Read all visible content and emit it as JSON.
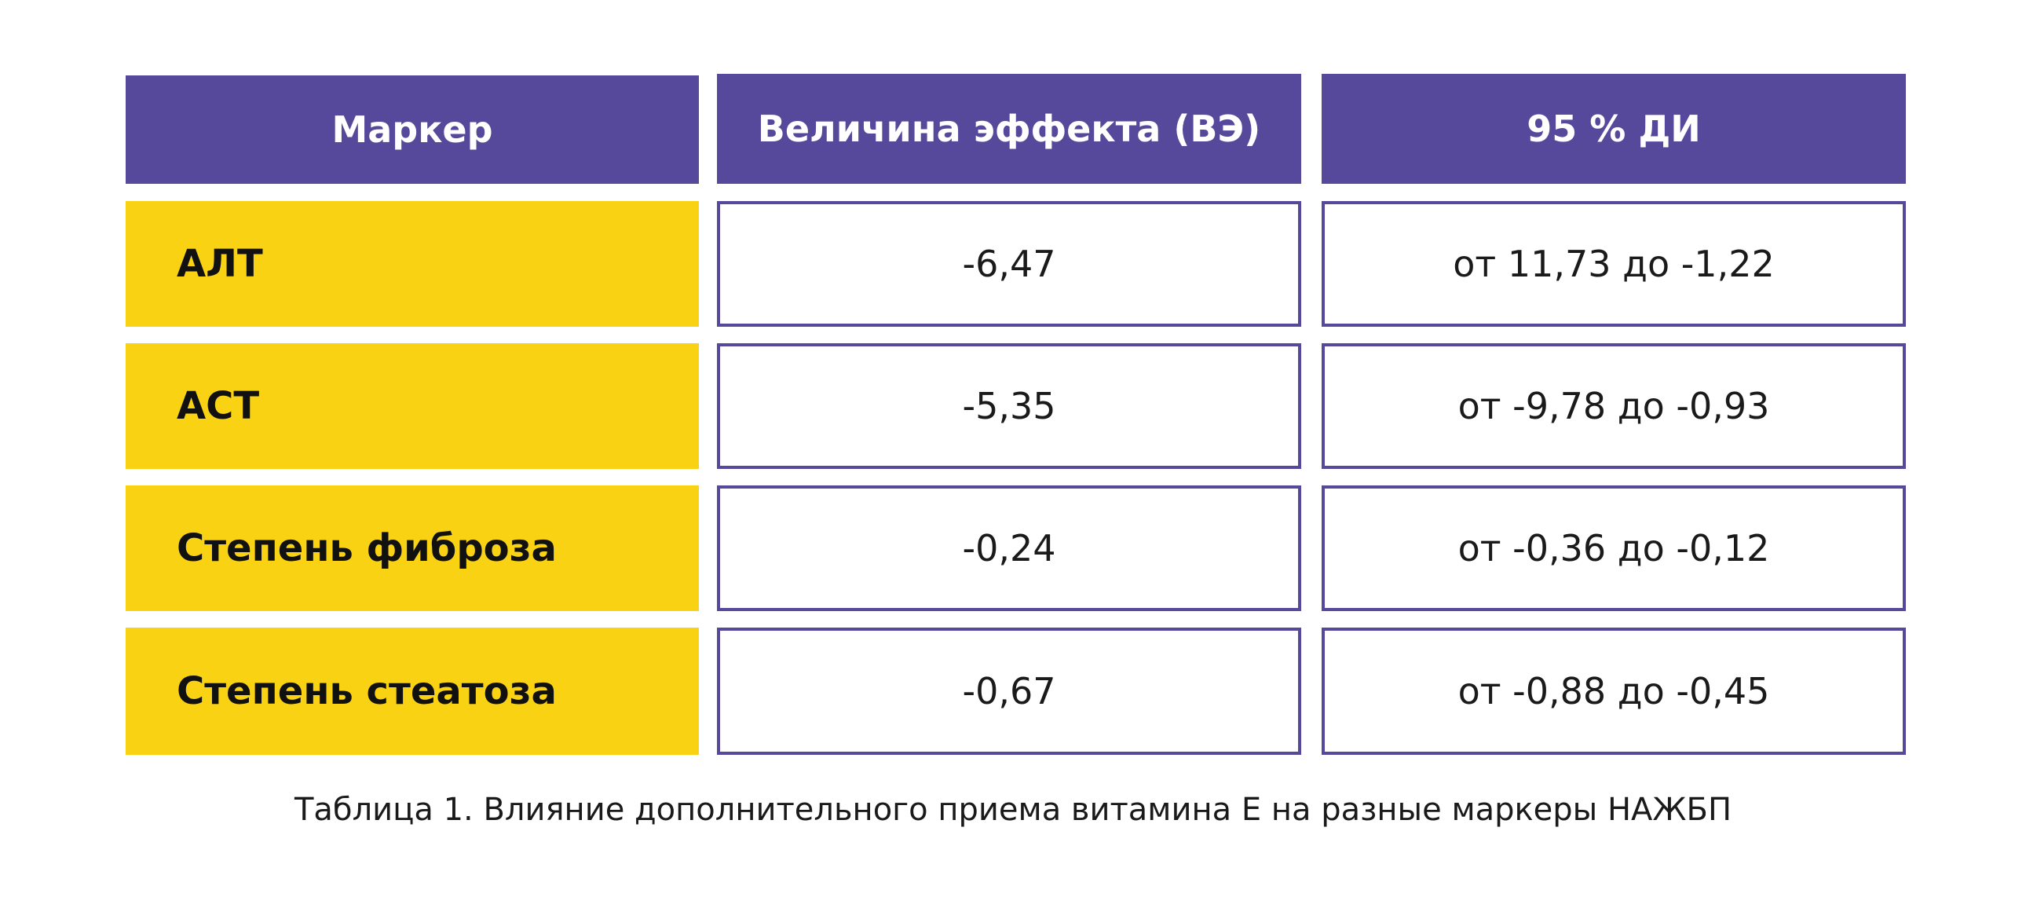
{
  "table": {
    "headers": [
      "Маркер",
      "Величина эффекта (ВЭ)",
      "95 % ДИ"
    ],
    "rows": [
      {
        "marker": "АЛТ",
        "effect": "-6,47",
        "ci": "от 11,73 до -1,22"
      },
      {
        "marker": "АСТ",
        "effect": "-5,35",
        "ci": "от -9,78 до -0,93"
      },
      {
        "marker": "Степень фиброза",
        "effect": "-0,24",
        "ci": "от -0,36 до -0,12"
      },
      {
        "marker": "Степень стеатоза",
        "effect": "-0,67",
        "ci": "от -0,88 до -0,45"
      }
    ]
  },
  "caption": "Таблица 1. Влияние дополнительного приема витамина Е на разные маркеры НАЖБП",
  "colors": {
    "header_bg": "#56489a",
    "marker_bg": "#f8d213",
    "border": "#56489a"
  }
}
